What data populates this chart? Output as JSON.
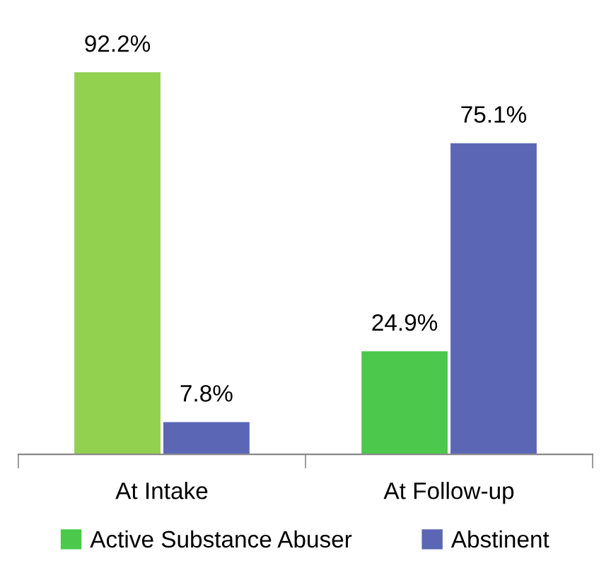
{
  "chart_data": {
    "type": "bar",
    "categories": [
      "At Intake",
      "At Follow-up"
    ],
    "series": [
      {
        "name": "Active Substance Abuser",
        "color": "#4cc94c",
        "colors": [
          "#92d050",
          "#4cc94c"
        ],
        "values": [
          92.2,
          24.9
        ],
        "value_labels": [
          "92.2%",
          "24.9%"
        ]
      },
      {
        "name": "Abstinent",
        "color": "#5b67b5",
        "values": [
          7.8,
          75.1
        ],
        "value_labels": [
          "7.8%",
          "75.1%"
        ]
      }
    ],
    "legend": "bottom"
  }
}
